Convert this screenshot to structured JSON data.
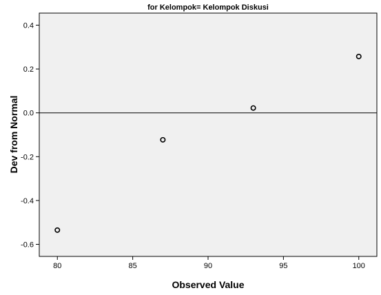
{
  "chart_data": {
    "type": "scatter",
    "title": "for Kelompok= Kelompok Diskusi",
    "xlabel": "Observed Value",
    "ylabel": "Dev from Normal",
    "xlim": [
      78.8,
      101.2
    ],
    "ylim": [
      -0.655,
      0.455
    ],
    "x_ticks": [
      80,
      85,
      90,
      95,
      100
    ],
    "y_ticks": [
      0.4,
      0.2,
      0.0,
      -0.2,
      -0.4,
      -0.6
    ],
    "x_tick_labels": [
      "80",
      "85",
      "90",
      "95",
      "100"
    ],
    "y_tick_labels": [
      "0.4",
      "0.2",
      "0.0",
      "-0.2",
      "-0.4",
      "-0.6"
    ],
    "reference_line_y": 0,
    "grid": false,
    "plot_background": "#f0f0f0",
    "points": [
      {
        "x": 80,
        "y": -0.535
      },
      {
        "x": 87,
        "y": -0.123
      },
      {
        "x": 93,
        "y": 0.022
      },
      {
        "x": 100,
        "y": 0.257
      }
    ]
  }
}
